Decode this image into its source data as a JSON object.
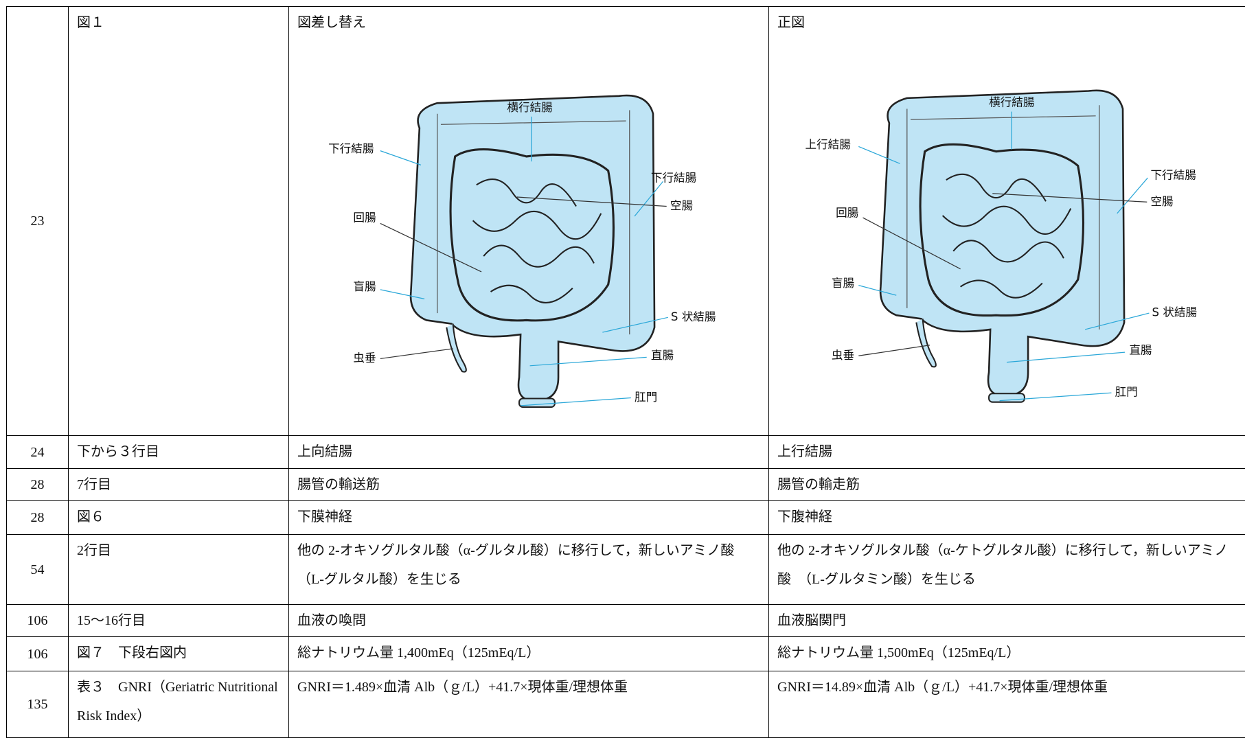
{
  "table": {
    "rows": [
      [
        "23",
        "図１",
        "図差し替え",
        "正図"
      ],
      [
        "24",
        "下から３行目",
        "上向結腸",
        "上行結腸"
      ],
      [
        "28",
        "7行目",
        "腸管の輸送筋",
        "腸管の輸走筋"
      ],
      [
        "28",
        "図６",
        "下膜神経",
        "下腹神経"
      ],
      [
        "54",
        "2行目",
        "他の 2-オキソグルタル酸（α-グルタル酸）に移行して，新しいアミノ酸（L-グルタル酸）を生じる",
        "他の 2-オキソグルタル酸（α-ケトグルタル酸）に移行して，新しいアミノ酸　（L-グルタミン酸）を生じる"
      ],
      [
        "106",
        "15～16行目",
        "血液の喚問",
        "血液脳関門"
      ],
      [
        "106",
        "図７　下段右図内",
        "総ナトリウム量 1,400mEq（125mEq/L）",
        "総ナトリウム量 1,500mEq（125mEq/L）"
      ],
      [
        "135",
        "表３　GNRI（Geriatric Nutritional Risk Index）",
        "GNRI＝1.489×血清 Alb（ｇ/L）+41.7×現体重/理想体重",
        "GNRI＝14.89×血清 Alb（ｇ/L）+41.7×現体重/理想体重"
      ]
    ]
  },
  "figures": [
    {
      "labels": [
        "横行結腸",
        "下行結腸",
        "下行結腸",
        "空腸",
        "回腸",
        "盲腸",
        "S 状結腸",
        "虫垂",
        "直腸",
        "肛門"
      ]
    },
    {
      "labels": [
        "横行結腸",
        "上行結腸",
        "下行結腸",
        "空腸",
        "回腸",
        "盲腸",
        "S 状結腸",
        "虫垂",
        "直腸",
        "肛門"
      ]
    }
  ]
}
